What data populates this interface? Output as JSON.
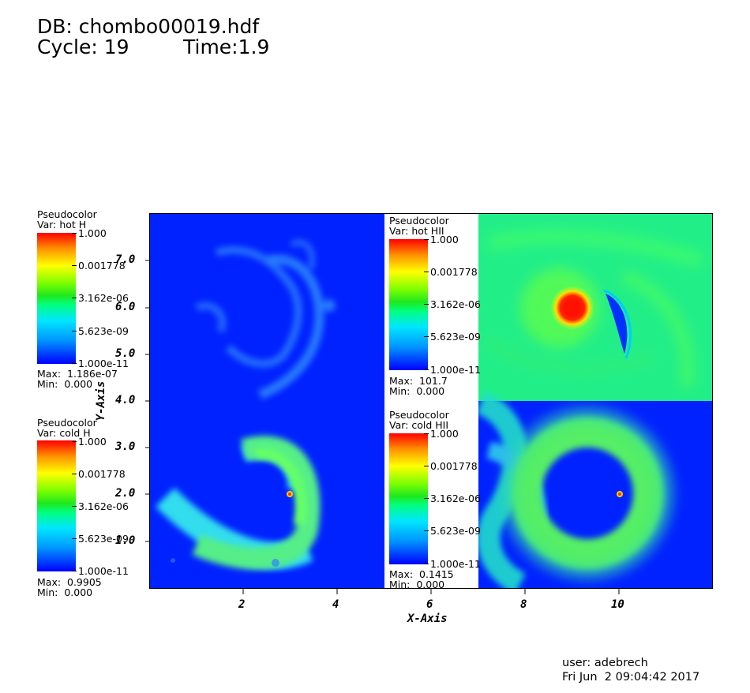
{
  "header": {
    "db": "DB: chombo00019.hdf",
    "cycle": "Cycle: 19",
    "time": "Time:1.9"
  },
  "legends": [
    {
      "title": "Pseudocolor",
      "var": "Var: hot H",
      "ticks": [
        "1.000",
        "0.001778",
        "3.162e-06",
        "5.623e-09",
        "1.000e-11"
      ],
      "max": "Max:  1.186e-07",
      "min": "Min:  0.000"
    },
    {
      "title": "Pseudocolor",
      "var": "Var: cold H",
      "ticks": [
        "1.000",
        "0.001778",
        "3.162e-06",
        "5.623e-09",
        "1.000e-11"
      ],
      "max": "Max:  0.9905",
      "min": "Min:  0.000"
    },
    {
      "title": "Pseudocolor",
      "var": "Var: hot HII",
      "ticks": [
        "1.000",
        "0.001778",
        "3.162e-06",
        "5.623e-09",
        "1.000e-11"
      ],
      "max": "Max:  101.7",
      "min": "Min:  0.000"
    },
    {
      "title": "Pseudocolor",
      "var": "Var: cold HII",
      "ticks": [
        "1.000",
        "0.001778",
        "3.162e-06",
        "5.623e-09",
        "1.000e-11"
      ],
      "max": "Max:  0.1415",
      "min": "Min:  0.000"
    }
  ],
  "axes": {
    "x_title": "X-Axis",
    "y_title": "Y-Axis",
    "x_ticks": [
      "2",
      "4",
      "6",
      "8",
      "10"
    ],
    "y_ticks": [
      "7.0",
      "6.0",
      "5.0",
      "4.0",
      "3.0",
      "2.0",
      "1.0"
    ]
  },
  "footer": {
    "user": "user: adebrech",
    "date": "Fri Jun  2 09:04:42 2017"
  },
  "colors": {
    "background_field": "#0022ff",
    "hot_hii_field": "#22ee88"
  }
}
